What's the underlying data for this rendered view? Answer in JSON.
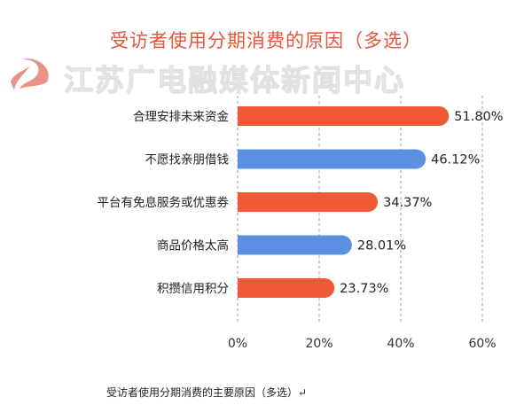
{
  "chart_data": {
    "type": "bar",
    "orientation": "horizontal",
    "title": "受访者使用分期消费的原因（多选）",
    "categories": [
      "合理安排未来资金",
      "不愿找亲朋借钱",
      "平台有免息服务或优惠券",
      "商品价格太高",
      "积攒信用积分"
    ],
    "values": [
      51.8,
      46.12,
      34.37,
      28.01,
      23.73
    ],
    "value_labels": [
      "51.80%",
      "46.12%",
      "34.37%",
      "28.01%",
      "23.73%"
    ],
    "bar_colors": [
      "#f05a37",
      "#5b8fe0",
      "#f05a37",
      "#5b8fe0",
      "#f05a37"
    ],
    "xlim": [
      0,
      60
    ],
    "xticks": [
      0,
      20,
      40,
      60
    ],
    "xtick_labels": [
      "0%",
      "20%",
      "40%",
      "60%"
    ],
    "grid": "vertical-dashed",
    "xlabel": "",
    "ylabel": ""
  },
  "watermark": {
    "text": "江苏广电融媒体新闻中心",
    "logo": "jsbc-logo"
  },
  "caption": "受访者使用分期消费的主要原因（多选）↵"
}
